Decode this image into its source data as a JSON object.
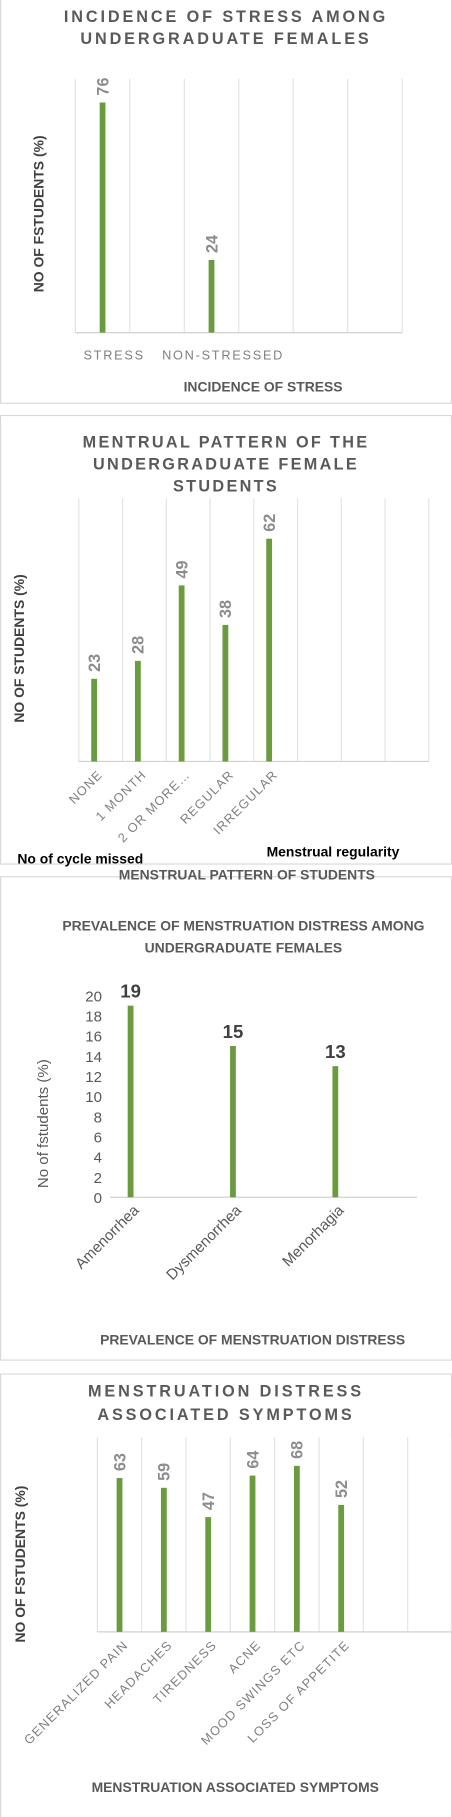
{
  "chart_data": [
    {
      "type": "bar",
      "title": "INCIDENCE OF STRESS AMONG UNDERGRADUATE FEMALES",
      "ylabel": "NO OF FSTUDENTS (%)",
      "xlabel": "INCIDENCE OF STRESS",
      "categories": [
        "STRESS",
        "NON-STRESSED"
      ],
      "values": [
        76,
        24
      ],
      "color": "#6b9b3f",
      "ylim": [
        0,
        80
      ],
      "grid": true
    },
    {
      "type": "bar",
      "title": "MENTRUAL PATTERN OF THE UNDERGRADUATE FEMALE STUDENTS",
      "ylabel": "NO OF STUDENTS (%)",
      "xlabel": "MENSTRUAL PATTERN OF STUDENTS",
      "annotations": [
        "No of cycle missed",
        "Menstrual regularity"
      ],
      "categories": [
        "NONE",
        "1 MONTH",
        "2 OR MORE…",
        "REGULAR",
        "IRREGULAR"
      ],
      "values": [
        23,
        28,
        49,
        38,
        62
      ],
      "color": "#6b9b3f",
      "ylim": [
        0,
        70
      ],
      "grid": true
    },
    {
      "type": "bar",
      "title": "PREVALENCE OF MENSTRUATION DISTRESS AMONG UNDERGRADUATE FEMALES",
      "ylabel": "No of fstudents (%)",
      "xlabel": "PREVALENCE OF MENSTRUATION DISTRESS",
      "categories": [
        "Amenorrhea",
        "Dysmenorrhea",
        "Menorhagia"
      ],
      "values": [
        19,
        15,
        13
      ],
      "color": "#6b9b3f",
      "ylim": [
        0,
        20
      ],
      "yticks": [
        0,
        2,
        4,
        6,
        8,
        10,
        12,
        14,
        16,
        18,
        20
      ],
      "grid": false
    },
    {
      "type": "bar",
      "title": "MENSTRUATION DISTRESS ASSOCIATED SYMPTOMS",
      "ylabel": "NO OF FSTUDENTS (%)",
      "xlabel": "MENSTRUATION ASSOCIATED SYMPTOMS",
      "categories": [
        "GENERALIZED PAIN",
        "HEADACHES",
        "TIREDNESS",
        "ACNE",
        "MOOD SWINGS ETC",
        "LOSS OF APPETITE"
      ],
      "values": [
        63,
        59,
        47,
        64,
        68,
        52
      ],
      "color": "#6b9b3f",
      "ylim": [
        0,
        75
      ],
      "grid": true
    }
  ]
}
